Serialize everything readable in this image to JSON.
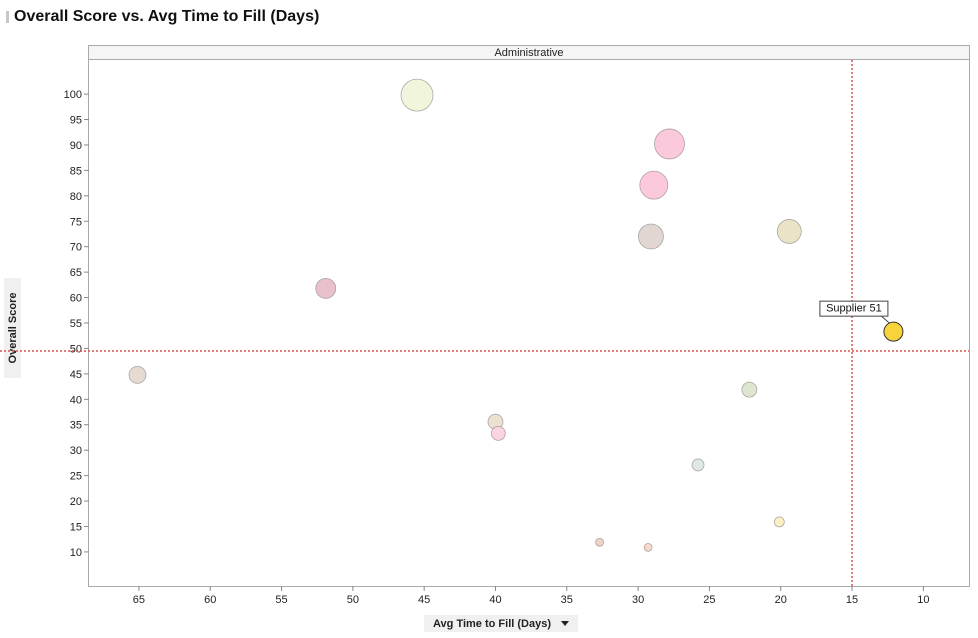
{
  "title": "Overall Score vs. Avg Time to Fill (Days)",
  "colors": {
    "reference_line": "#d9534f",
    "highlight": "#f7d33c"
  },
  "chart_data": {
    "type": "scatter",
    "title": "Overall Score vs. Avg Time to Fill (Days)",
    "panel_title": "Administrative",
    "xlabel": "Avg Time to Fill (Days)",
    "ylabel": "Overall Score",
    "x_reversed": true,
    "xlim": [
      68.5,
      6.8
    ],
    "ylim": [
      3.3,
      106.7
    ],
    "xticks": [
      65,
      60,
      55,
      50,
      45,
      40,
      35,
      30,
      25,
      20,
      15,
      10
    ],
    "yticks": [
      10,
      15,
      20,
      25,
      30,
      35,
      40,
      45,
      50,
      55,
      60,
      65,
      70,
      75,
      80,
      85,
      90,
      95,
      100
    ],
    "grid": false,
    "reference_lines": {
      "x": 15,
      "y": 49.5
    },
    "points": [
      {
        "x": 45.5,
        "y": 99.8,
        "size": 16,
        "color": "#f1f5dc"
      },
      {
        "x": 27.8,
        "y": 90.2,
        "size": 15,
        "color": "#fbc8dc"
      },
      {
        "x": 28.9,
        "y": 82.1,
        "size": 14,
        "color": "#fbc8dc"
      },
      {
        "x": 19.4,
        "y": 73.0,
        "size": 12,
        "color": "#ebe3c7"
      },
      {
        "x": 29.1,
        "y": 72.0,
        "size": 12.5,
        "color": "#e1d6d2"
      },
      {
        "x": 51.9,
        "y": 61.8,
        "size": 10,
        "color": "#e9c1cd"
      },
      {
        "x": 12.1,
        "y": 53.3,
        "size": 9.5,
        "color": "#f7d33c",
        "label": "Supplier 51",
        "highlighted": true
      },
      {
        "x": 65.1,
        "y": 44.8,
        "size": 8.5,
        "color": "#e6dad3"
      },
      {
        "x": 22.2,
        "y": 41.9,
        "size": 7.5,
        "color": "#dfe6cf"
      },
      {
        "x": 40.0,
        "y": 35.6,
        "size": 7.5,
        "color": "#eee0d1"
      },
      {
        "x": 39.8,
        "y": 33.3,
        "size": 7,
        "color": "#fbd3e2"
      },
      {
        "x": 25.8,
        "y": 27.1,
        "size": 6,
        "color": "#dfe7e7"
      },
      {
        "x": 20.1,
        "y": 15.9,
        "size": 5,
        "color": "#fbf0c4"
      },
      {
        "x": 32.7,
        "y": 11.9,
        "size": 4,
        "color": "#efd3c7"
      },
      {
        "x": 29.3,
        "y": 10.9,
        "size": 4,
        "color": "#f4d8cc"
      }
    ]
  }
}
